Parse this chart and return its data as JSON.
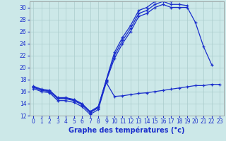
{
  "series1_x": [
    0,
    1,
    2,
    3,
    4,
    5,
    6,
    7,
    8,
    9,
    10,
    11,
    12,
    13,
    14,
    15,
    16,
    17,
    18,
    19,
    20,
    21,
    22,
    23
  ],
  "series1_y": [
    16.5,
    16.0,
    15.8,
    14.5,
    14.5,
    14.2,
    13.5,
    12.2,
    13.0,
    17.5,
    15.2,
    15.3,
    15.5,
    15.7,
    15.8,
    16.0,
    16.2,
    16.4,
    16.6,
    16.8,
    17.0,
    17.0,
    17.2,
    17.2
  ],
  "series2_x": [
    0,
    1,
    2,
    3,
    4,
    5,
    6,
    7,
    8,
    9,
    10,
    11,
    12,
    13,
    14,
    15,
    16,
    17,
    18,
    19,
    20,
    21,
    22
  ],
  "series2_y": [
    16.7,
    16.2,
    16.0,
    14.8,
    14.8,
    14.5,
    13.8,
    12.5,
    13.3,
    17.8,
    21.5,
    24.0,
    26.0,
    28.5,
    29.0,
    30.0,
    30.5,
    30.0,
    30.0,
    30.0,
    27.5,
    23.5,
    20.5
  ],
  "series3_x": [
    0,
    1,
    2,
    3,
    4,
    5,
    6,
    7,
    8,
    9,
    10,
    11,
    12,
    13,
    14,
    15,
    16,
    17,
    18,
    19
  ],
  "series3_y": [
    16.8,
    16.3,
    16.1,
    14.9,
    14.9,
    14.6,
    13.9,
    12.6,
    13.4,
    17.9,
    22.0,
    24.5,
    26.5,
    29.0,
    29.5,
    30.5,
    31.0,
    30.5,
    30.5,
    30.3
  ],
  "series4_x": [
    0,
    1,
    2,
    3,
    4,
    5,
    6,
    7,
    8,
    9,
    10,
    11,
    12,
    13,
    14,
    15,
    16,
    17
  ],
  "series4_y": [
    16.9,
    16.4,
    16.2,
    15.0,
    15.0,
    14.7,
    14.0,
    12.7,
    13.5,
    18.0,
    22.5,
    25.0,
    27.0,
    29.5,
    30.0,
    31.0,
    31.5,
    31.0
  ],
  "xlim": [
    -0.5,
    23.5
  ],
  "ylim": [
    12,
    31
  ],
  "yticks": [
    12,
    14,
    16,
    18,
    20,
    22,
    24,
    26,
    28,
    30
  ],
  "xtick_labels": [
    "0",
    "1",
    "2",
    "3",
    "4",
    "5",
    "6",
    "7",
    "8",
    "9",
    "10",
    "11",
    "12",
    "13",
    "14",
    "15",
    "16",
    "17",
    "18",
    "19",
    "20",
    "21",
    "22",
    "23"
  ],
  "xlabel": "Graphe des températures (°c)",
  "background_color": "#cce8e8",
  "grid_color": "#aacccc",
  "line_color": "#1a2ecc",
  "xlabel_fontsize": 7,
  "tick_fontsize": 5.5
}
